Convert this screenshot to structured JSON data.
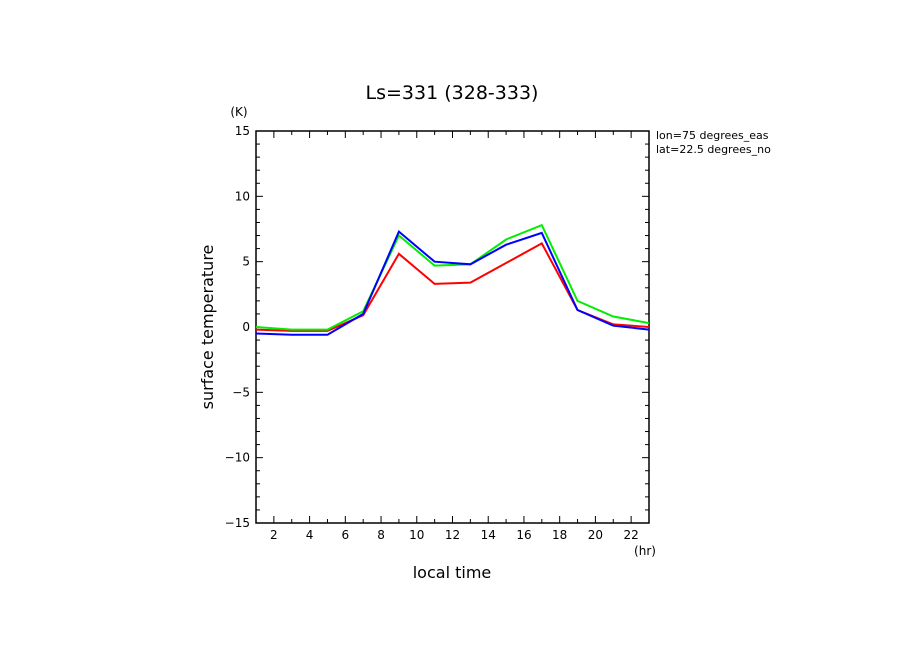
{
  "chart_data": {
    "type": "line",
    "title": "Ls=331 (328-333)",
    "xlabel": "local time",
    "ylabel": "surface temperature",
    "x_unit": "(hr)",
    "y_unit": "(K)",
    "xlim": [
      1,
      23
    ],
    "ylim": [
      -15,
      15
    ],
    "x_ticks": [
      2,
      4,
      6,
      8,
      10,
      12,
      14,
      16,
      18,
      20,
      22
    ],
    "y_ticks": [
      -15,
      -10,
      -5,
      0,
      5,
      10,
      15
    ],
    "grid": false,
    "annotations": [
      "lon=75 degrees_eas",
      "lat=22.5 degrees_no"
    ],
    "x": [
      1,
      3,
      5,
      7,
      9,
      11,
      13,
      15,
      17,
      19,
      21,
      23
    ],
    "series": [
      {
        "color": "#ff0000",
        "values": [
          -0.2,
          -0.3,
          -0.3,
          0.9,
          5.6,
          3.3,
          3.4,
          4.9,
          6.4,
          1.3,
          0.2,
          0.0
        ]
      },
      {
        "color": "#00ee00",
        "values": [
          0.0,
          -0.2,
          -0.2,
          1.2,
          7.0,
          4.7,
          4.8,
          6.7,
          7.8,
          2.0,
          0.8,
          0.3
        ]
      },
      {
        "color": "#0000ff",
        "values": [
          -0.5,
          -0.6,
          -0.6,
          1.0,
          7.3,
          5.0,
          4.8,
          6.3,
          7.2,
          1.3,
          0.1,
          -0.2
        ]
      }
    ]
  }
}
